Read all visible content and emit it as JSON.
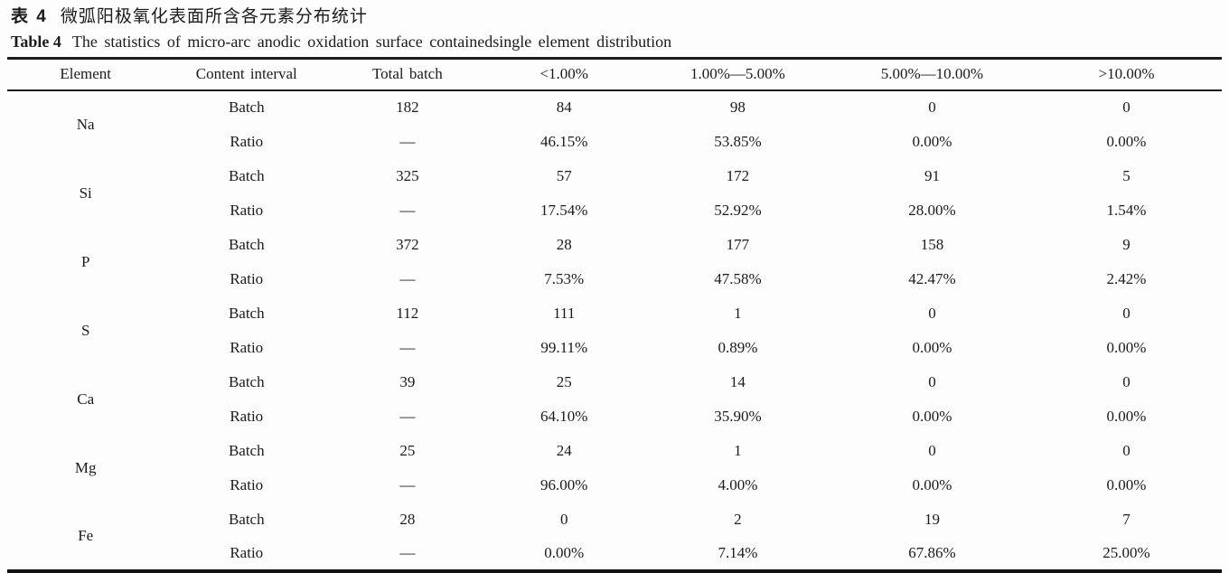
{
  "caption": {
    "cn_label": "表 4",
    "cn_text": "微弧阳极氧化表面所含各元素分布统计",
    "en_label": "Table 4",
    "en_text": "The statistics of micro-arc anodic oxidation surface containedsingle element distribution"
  },
  "chart_data": {
    "type": "table",
    "columns": [
      "Element",
      "Content interval",
      "Total batch",
      "<1.00%",
      "1.00%—5.00%",
      "5.00%—10.00%",
      ">10.00%"
    ],
    "interval_row_labels": {
      "batch": "Batch",
      "ratio": "Ratio"
    },
    "rows": [
      {
        "element": "Na",
        "batch": [
          "182",
          "84",
          "98",
          "0",
          "0"
        ],
        "ratio": [
          "—",
          "46.15%",
          "53.85%",
          "0.00%",
          "0.00%"
        ]
      },
      {
        "element": "Si",
        "batch": [
          "325",
          "57",
          "172",
          "91",
          "5"
        ],
        "ratio": [
          "—",
          "17.54%",
          "52.92%",
          "28.00%",
          "1.54%"
        ]
      },
      {
        "element": "P",
        "batch": [
          "372",
          "28",
          "177",
          "158",
          "9"
        ],
        "ratio": [
          "—",
          "7.53%",
          "47.58%",
          "42.47%",
          "2.42%"
        ]
      },
      {
        "element": "S",
        "batch": [
          "112",
          "111",
          "1",
          "0",
          "0"
        ],
        "ratio": [
          "—",
          "99.11%",
          "0.89%",
          "0.00%",
          "0.00%"
        ]
      },
      {
        "element": "Ca",
        "batch": [
          "39",
          "25",
          "14",
          "0",
          "0"
        ],
        "ratio": [
          "—",
          "64.10%",
          "35.90%",
          "0.00%",
          "0.00%"
        ]
      },
      {
        "element": "Mg",
        "batch": [
          "25",
          "24",
          "1",
          "0",
          "0"
        ],
        "ratio": [
          "—",
          "96.00%",
          "4.00%",
          "0.00%",
          "0.00%"
        ]
      },
      {
        "element": "Fe",
        "batch": [
          "28",
          "0",
          "2",
          "19",
          "7"
        ],
        "ratio": [
          "—",
          "0.00%",
          "7.14%",
          "67.86%",
          "25.00%"
        ]
      }
    ],
    "text_color": "#1b1b1b",
    "rule_color": "#1a1a1a",
    "background": "#fdfdfd"
  }
}
